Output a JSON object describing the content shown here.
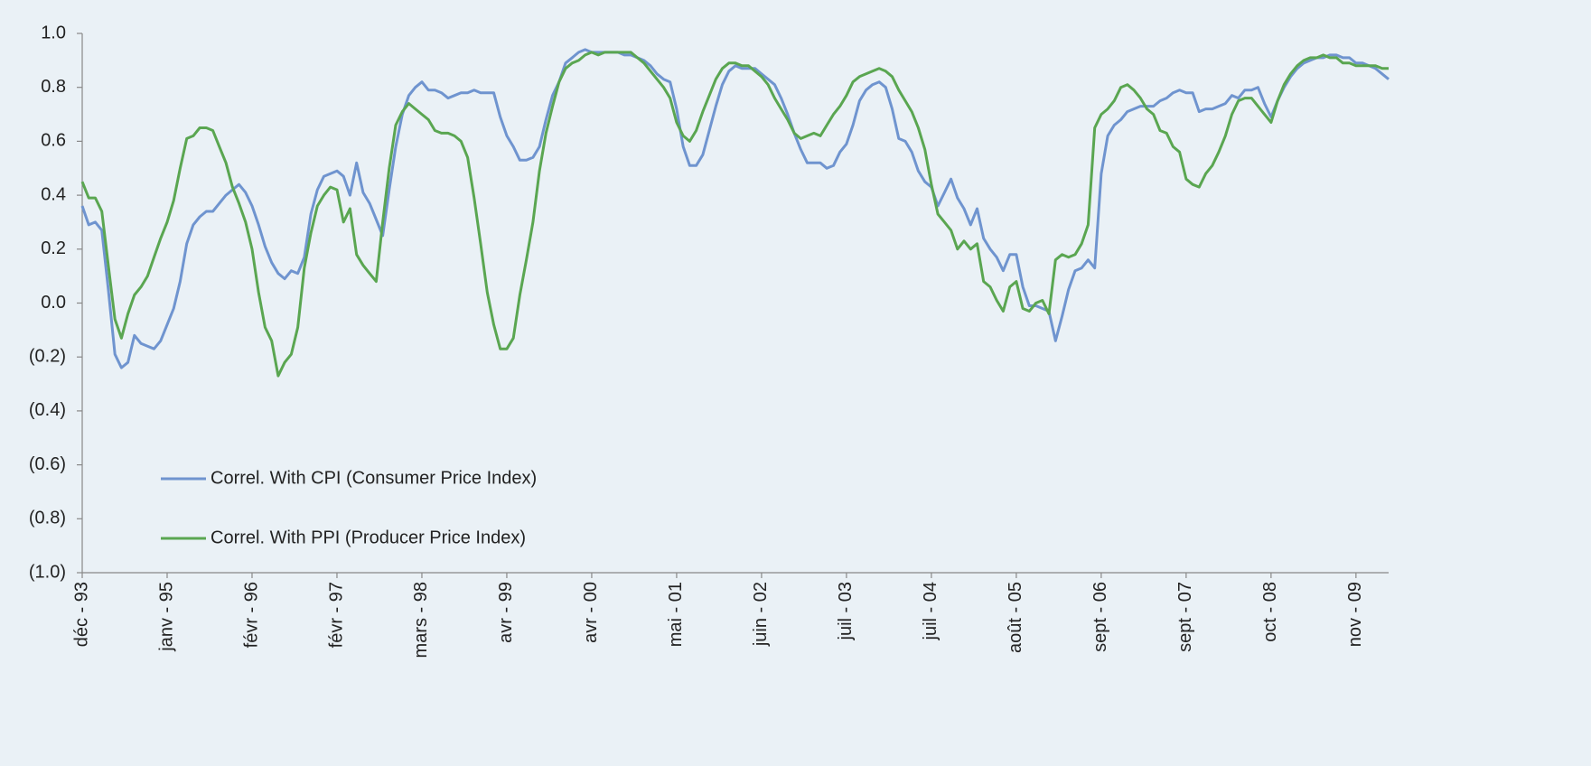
{
  "chart_data": {
    "type": "line",
    "categories": [
      "déc - 93",
      null,
      null,
      null,
      null,
      null,
      null,
      null,
      null,
      null,
      null,
      null,
      null,
      "janv - 95",
      null,
      null,
      null,
      null,
      null,
      null,
      null,
      null,
      null,
      null,
      null,
      null,
      "févr - 96",
      null,
      null,
      null,
      null,
      null,
      null,
      null,
      null,
      null,
      null,
      null,
      null,
      "févr - 97",
      null,
      null,
      null,
      null,
      null,
      null,
      null,
      null,
      null,
      null,
      null,
      null,
      "mars - 98",
      null,
      null,
      null,
      null,
      null,
      null,
      null,
      null,
      null,
      null,
      null,
      null,
      "avr - 99",
      null,
      null,
      null,
      null,
      null,
      null,
      null,
      null,
      null,
      null,
      null,
      null,
      "avr - 00",
      null,
      null,
      null,
      null,
      null,
      null,
      null,
      null,
      null,
      null,
      null,
      null,
      "mai - 01",
      null,
      null,
      null,
      null,
      null,
      null,
      null,
      null,
      null,
      null,
      null,
      null,
      "juin - 02",
      null,
      null,
      null,
      null,
      null,
      null,
      null,
      null,
      null,
      null,
      null,
      null,
      "juil - 03",
      null,
      null,
      null,
      null,
      null,
      null,
      null,
      null,
      null,
      null,
      null,
      null,
      "juil - 04",
      null,
      null,
      null,
      null,
      null,
      null,
      null,
      null,
      null,
      null,
      null,
      null,
      "août - 05",
      null,
      null,
      null,
      null,
      null,
      null,
      null,
      null,
      null,
      null,
      null,
      null,
      "sept - 06",
      null,
      null,
      null,
      null,
      null,
      null,
      null,
      null,
      null,
      null,
      null,
      null,
      "sept - 07",
      null,
      null,
      null,
      null,
      null,
      null,
      null,
      null,
      null,
      null,
      null,
      null,
      "oct - 08",
      null,
      null,
      null,
      null,
      null,
      null,
      null,
      null,
      null,
      null,
      null,
      null,
      "nov - 09",
      null,
      null,
      null,
      null,
      null
    ],
    "series": [
      {
        "name": "Correl. With CPI (Consumer Price Index)",
        "color": "#6f94cf",
        "values": [
          0.36,
          0.29,
          0.3,
          0.27,
          0.05,
          -0.19,
          -0.24,
          -0.22,
          -0.12,
          -0.15,
          -0.16,
          -0.17,
          -0.14,
          -0.08,
          -0.02,
          0.08,
          0.22,
          0.29,
          0.32,
          0.34,
          0.34,
          0.37,
          0.4,
          0.42,
          0.44,
          0.41,
          0.36,
          0.29,
          0.21,
          0.15,
          0.11,
          0.09,
          0.12,
          0.11,
          0.17,
          0.33,
          0.42,
          0.47,
          0.48,
          0.49,
          0.47,
          0.4,
          0.52,
          0.41,
          0.37,
          0.31,
          0.25,
          0.42,
          0.58,
          0.7,
          0.77,
          0.8,
          0.82,
          0.79,
          0.79,
          0.78,
          0.76,
          0.77,
          0.78,
          0.78,
          0.79,
          0.78,
          0.78,
          0.78,
          0.69,
          0.62,
          0.58,
          0.53,
          0.53,
          0.54,
          0.58,
          0.68,
          0.77,
          0.82,
          0.89,
          0.91,
          0.93,
          0.94,
          0.93,
          0.93,
          0.93,
          0.93,
          0.93,
          0.92,
          0.92,
          0.91,
          0.9,
          0.88,
          0.85,
          0.83,
          0.82,
          0.72,
          0.58,
          0.51,
          0.51,
          0.55,
          0.64,
          0.73,
          0.81,
          0.86,
          0.88,
          0.87,
          0.87,
          0.87,
          0.85,
          0.83,
          0.81,
          0.76,
          0.7,
          0.63,
          0.57,
          0.52,
          0.52,
          0.52,
          0.5,
          0.51,
          0.56,
          0.59,
          0.66,
          0.75,
          0.79,
          0.81,
          0.82,
          0.8,
          0.72,
          0.61,
          0.6,
          0.56,
          0.49,
          0.45,
          0.43,
          0.36,
          0.41,
          0.46,
          0.39,
          0.35,
          0.29,
          0.35,
          0.24,
          0.2,
          0.17,
          0.12,
          0.18,
          0.18,
          0.06,
          -0.01,
          -0.01,
          -0.02,
          -0.03,
          -0.14,
          -0.05,
          0.05,
          0.12,
          0.13,
          0.16,
          0.13,
          0.48,
          0.62,
          0.66,
          0.68,
          0.71,
          0.72,
          0.73,
          0.73,
          0.73,
          0.75,
          0.76,
          0.78,
          0.79,
          0.78,
          0.78,
          0.71,
          0.72,
          0.72,
          0.73,
          0.74,
          0.77,
          0.76,
          0.79,
          0.79,
          0.8,
          0.74,
          0.69,
          0.75,
          0.8,
          0.84,
          0.87,
          0.89,
          0.9,
          0.91,
          0.91,
          0.92,
          0.92,
          0.91,
          0.91,
          0.89,
          0.89,
          0.88,
          0.87,
          0.85,
          0.83
        ]
      },
      {
        "name": "Correl. With PPI (Producer Price Index)",
        "color": "#5aa651",
        "values": [
          0.45,
          0.39,
          0.39,
          0.34,
          0.14,
          -0.06,
          -0.13,
          -0.04,
          0.03,
          0.06,
          0.1,
          0.17,
          0.24,
          0.3,
          0.38,
          0.5,
          0.61,
          0.62,
          0.65,
          0.65,
          0.64,
          0.58,
          0.52,
          0.43,
          0.37,
          0.3,
          0.2,
          0.04,
          -0.09,
          -0.14,
          -0.27,
          -0.22,
          -0.19,
          -0.09,
          0.13,
          0.26,
          0.36,
          0.4,
          0.43,
          0.42,
          0.3,
          0.35,
          0.18,
          0.14,
          0.11,
          0.08,
          0.3,
          0.5,
          0.66,
          0.71,
          0.74,
          0.72,
          0.7,
          0.68,
          0.64,
          0.63,
          0.63,
          0.62,
          0.6,
          0.54,
          0.39,
          0.22,
          0.04,
          -0.08,
          -0.17,
          -0.17,
          -0.13,
          0.03,
          0.16,
          0.3,
          0.49,
          0.63,
          0.73,
          0.82,
          0.87,
          0.89,
          0.9,
          0.92,
          0.93,
          0.92,
          0.93,
          0.93,
          0.93,
          0.93,
          0.93,
          0.91,
          0.89,
          0.86,
          0.83,
          0.8,
          0.76,
          0.67,
          0.62,
          0.6,
          0.64,
          0.71,
          0.77,
          0.83,
          0.87,
          0.89,
          0.89,
          0.88,
          0.88,
          0.86,
          0.84,
          0.81,
          0.76,
          0.72,
          0.68,
          0.63,
          0.61,
          0.62,
          0.63,
          0.62,
          0.66,
          0.7,
          0.73,
          0.77,
          0.82,
          0.84,
          0.85,
          0.86,
          0.87,
          0.86,
          0.84,
          0.79,
          0.75,
          0.71,
          0.65,
          0.57,
          0.44,
          0.33,
          0.3,
          0.27,
          0.2,
          0.23,
          0.2,
          0.22,
          0.08,
          0.06,
          0.01,
          -0.03,
          0.06,
          0.08,
          -0.02,
          -0.03,
          0.0,
          0.01,
          -0.04,
          0.16,
          0.18,
          0.17,
          0.18,
          0.22,
          0.29,
          0.65,
          0.7,
          0.72,
          0.75,
          0.8,
          0.81,
          0.79,
          0.76,
          0.72,
          0.7,
          0.64,
          0.63,
          0.58,
          0.56,
          0.46,
          0.44,
          0.43,
          0.48,
          0.51,
          0.56,
          0.62,
          0.7,
          0.75,
          0.76,
          0.76,
          0.73,
          0.7,
          0.67,
          0.75,
          0.81,
          0.85,
          0.88,
          0.9,
          0.91,
          0.91,
          0.92,
          0.91,
          0.91,
          0.89,
          0.89,
          0.88,
          0.88,
          0.88,
          0.88,
          0.87,
          0.87
        ]
      }
    ],
    "ylim": [
      -1.0,
      1.0
    ],
    "yticks": [
      {
        "value": -1.0,
        "label": "(1.0)"
      },
      {
        "value": -0.8,
        "label": "(0.8)"
      },
      {
        "value": -0.6,
        "label": "(0.6)"
      },
      {
        "value": -0.4,
        "label": "(0.4)"
      },
      {
        "value": -0.2,
        "label": "(0.2)"
      },
      {
        "value": 0,
        "label": "0.0"
      },
      {
        "value": 0.2,
        "label": "0.2"
      },
      {
        "value": 0.4,
        "label": "0.4"
      },
      {
        "value": 0.6,
        "label": "0.6"
      },
      {
        "value": 0.8,
        "label": "0.8"
      },
      {
        "value": 1.0,
        "label": "1.0"
      }
    ],
    "grid": false,
    "legend": "lower left"
  }
}
